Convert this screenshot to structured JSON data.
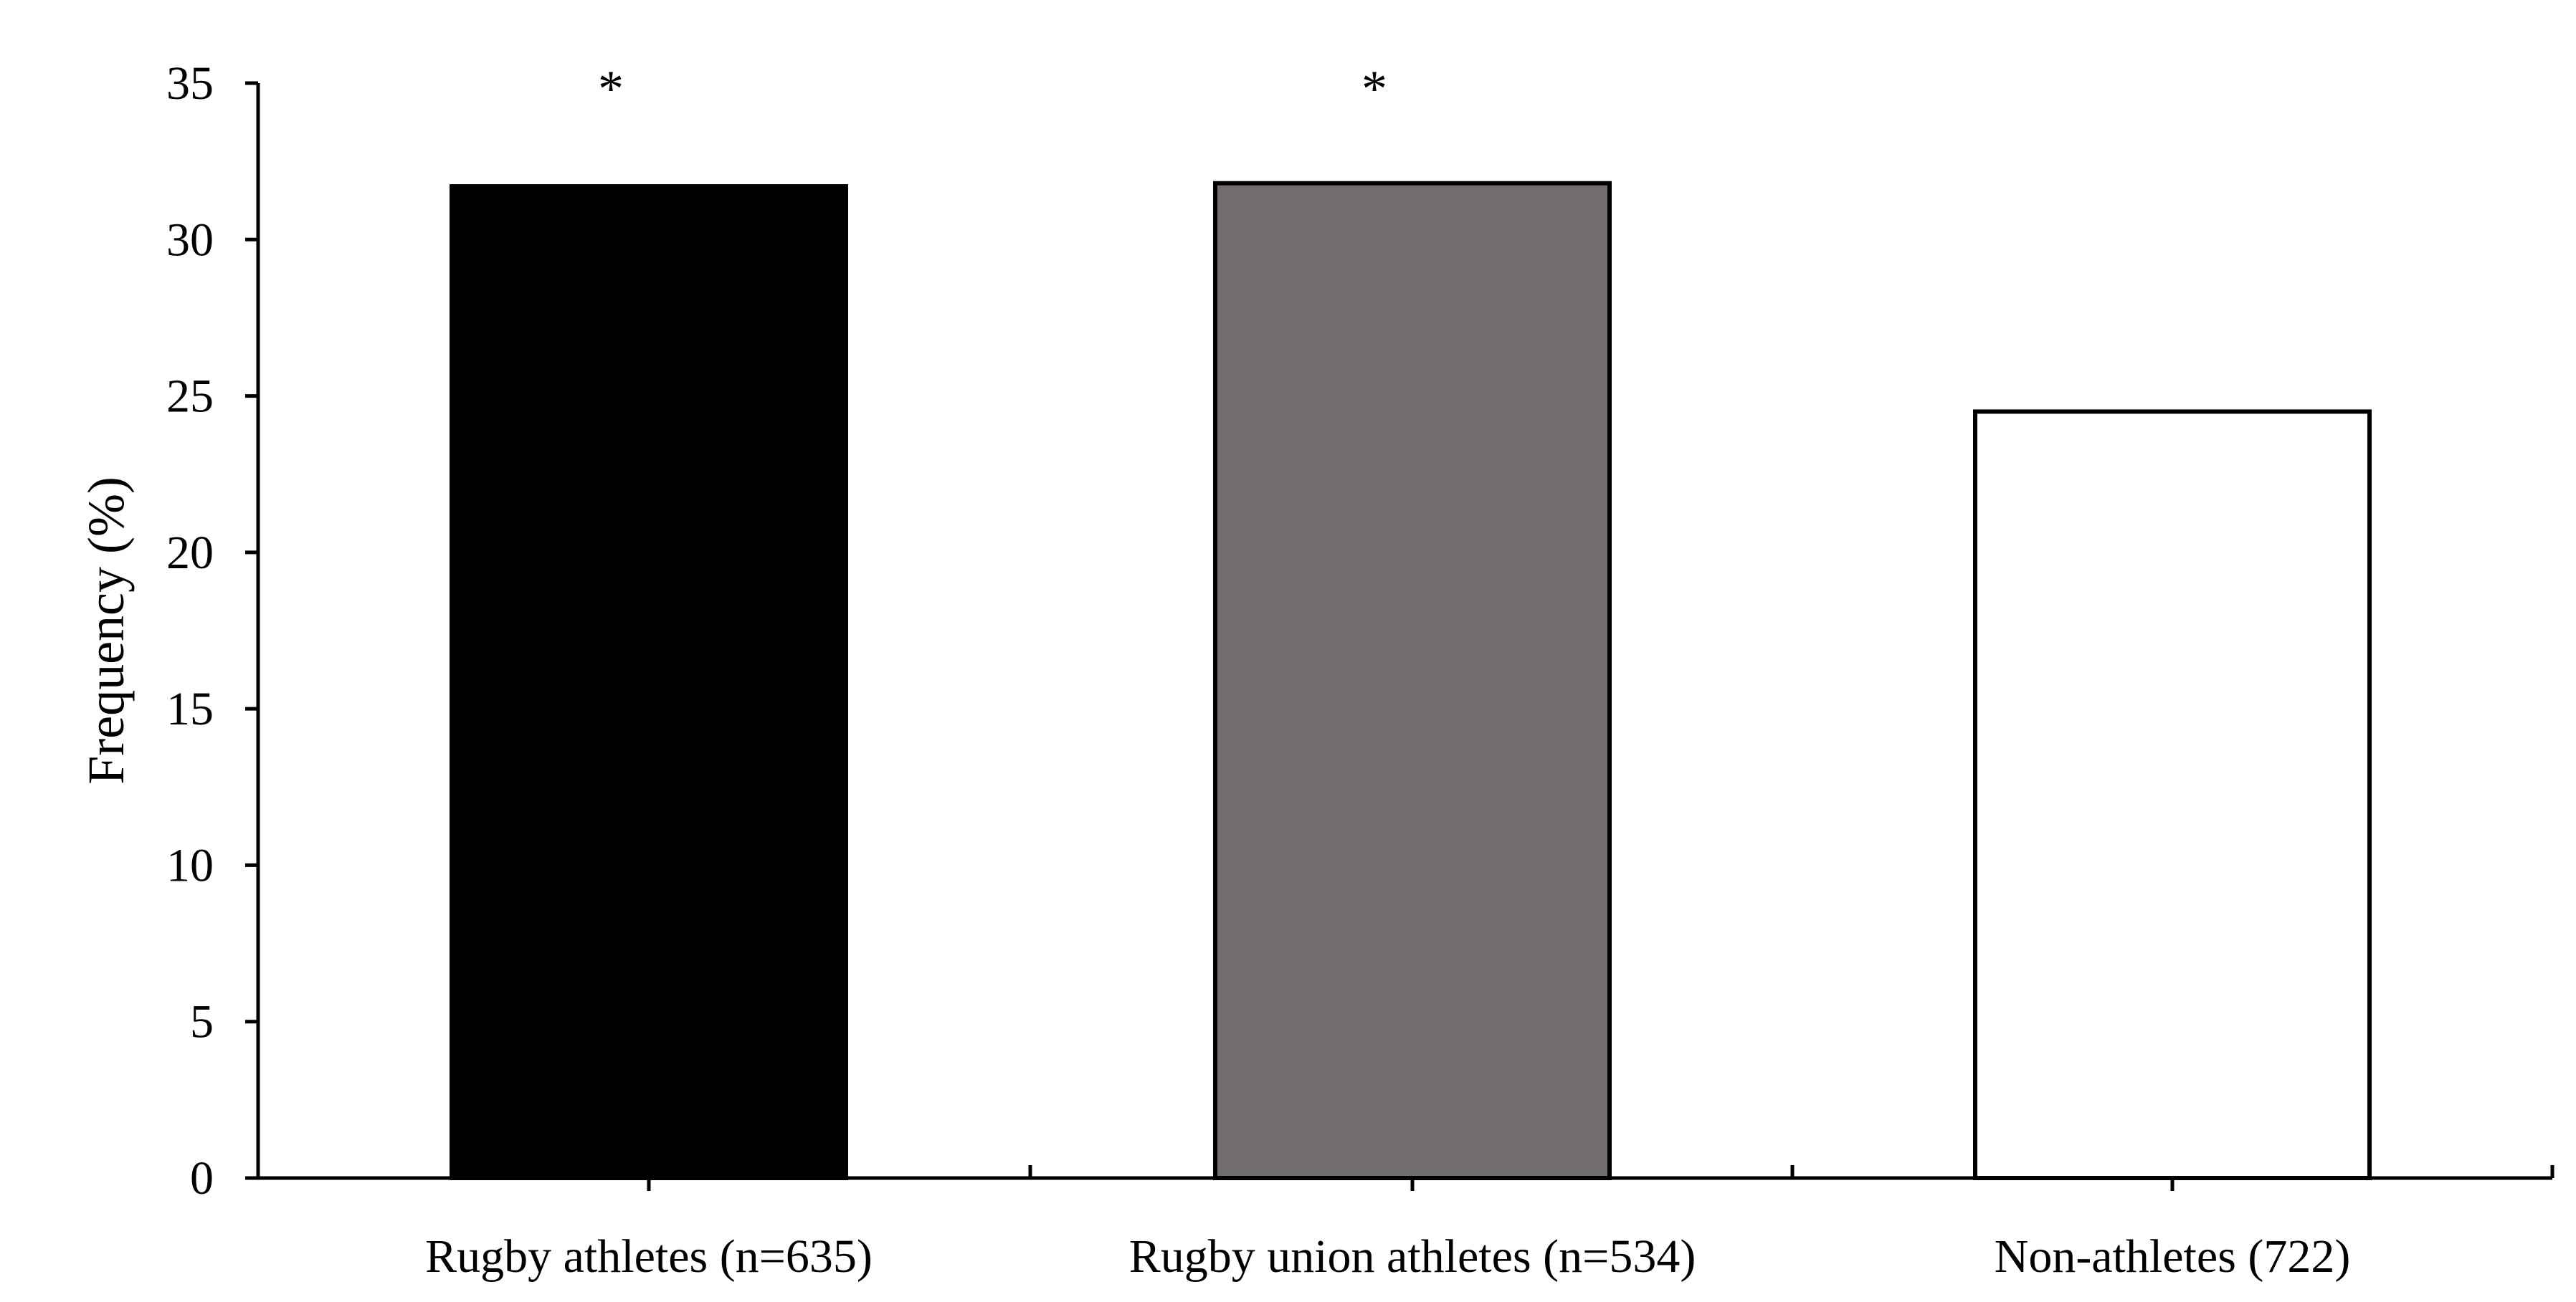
{
  "chart_data": {
    "type": "bar",
    "categories": [
      "Rugby athletes (n=635)",
      "Rugby union athletes (n=534)",
      "Non-athletes (722)"
    ],
    "values": [
      31.7,
      31.8,
      24.5
    ],
    "bar_colors": [
      "#000000",
      "#726e6d",
      "#ffffff"
    ],
    "annotations": [
      "*",
      "*",
      ""
    ],
    "title": "",
    "xlabel": "",
    "ylabel": "Frequency (%)",
    "ylim": [
      0,
      35
    ],
    "yticks": [
      0,
      5,
      10,
      15,
      20,
      25,
      30,
      35
    ],
    "grid": false,
    "legend": "none"
  }
}
